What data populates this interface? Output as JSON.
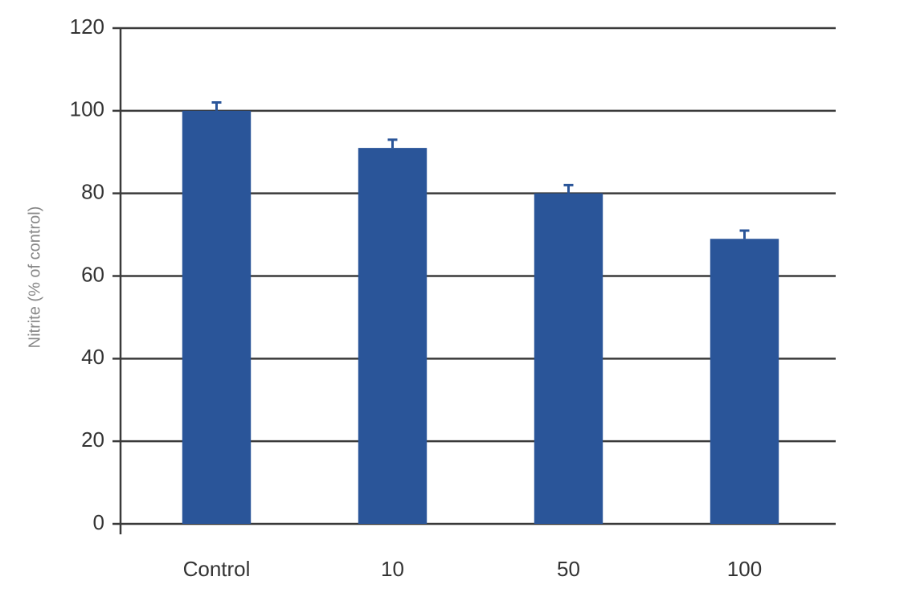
{
  "chart_data": {
    "type": "bar",
    "y_label": "Nitrite (% of control)",
    "categories": [
      "Control",
      "10",
      "50",
      "100"
    ],
    "values": [
      100,
      91,
      80,
      69
    ],
    "errors": [
      2,
      2,
      2,
      2
    ],
    "color": "#2a5599",
    "ylim": [
      0,
      120
    ],
    "yticks": [
      0,
      20,
      40,
      60,
      80,
      100,
      120
    ],
    "grid": true
  }
}
